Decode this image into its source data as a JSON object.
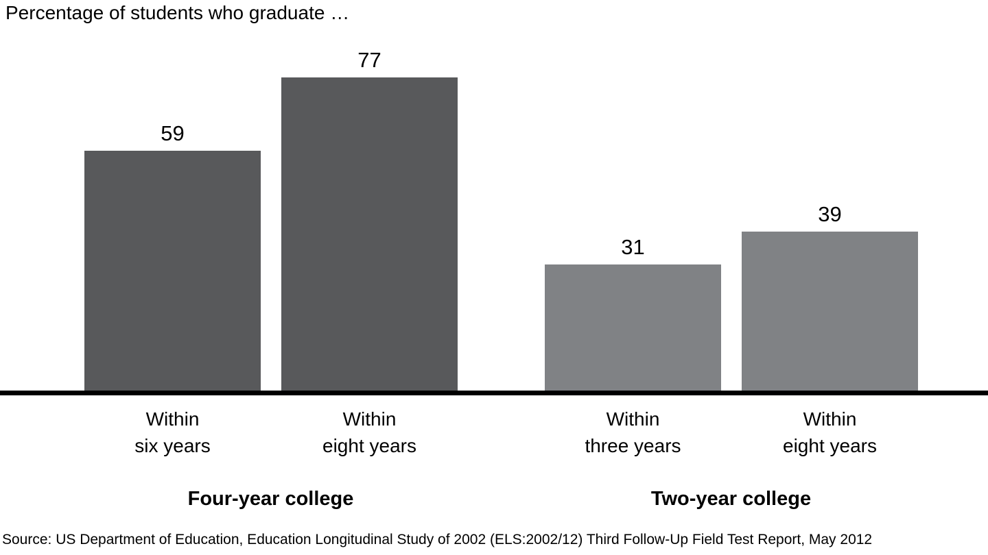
{
  "title": "Percentage of students who graduate …",
  "source": "Source: US Department of Education, Education Longitudinal Study of 2002 (ELS:2002/12) Third Follow-Up Field Test Report, May 2012",
  "colors": {
    "dark_bar": "#58595b",
    "light_bar": "#808285",
    "axis": "#000000",
    "text": "#000000",
    "background": "#ffffff"
  },
  "chart_data": {
    "type": "bar",
    "title": "Percentage of students who graduate …",
    "xlabel": "",
    "ylabel": "",
    "ylim": [
      0,
      100
    ],
    "grid": false,
    "y_axis_shown": false,
    "baseline_only": true,
    "value_labels_position": "above bars",
    "groups": [
      {
        "label": "Four-year college",
        "bar_color": "#58595b",
        "bars": [
          {
            "category_line1": "Within",
            "category_line2": "six years",
            "value": 59
          },
          {
            "category_line1": "Within",
            "category_line2": "eight years",
            "value": 77
          }
        ]
      },
      {
        "label": "Two-year college",
        "bar_color": "#808285",
        "bars": [
          {
            "category_line1": "Within",
            "category_line2": "three years",
            "value": 31
          },
          {
            "category_line1": "Within",
            "category_line2": "eight years",
            "value": 39
          }
        ]
      }
    ]
  }
}
